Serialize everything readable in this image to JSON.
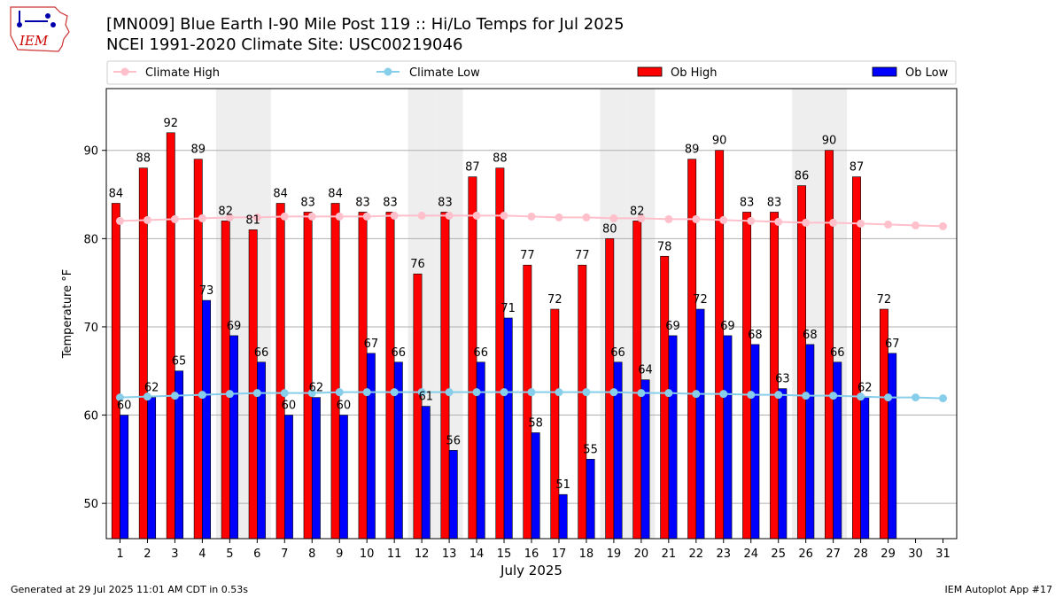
{
  "logo_text": "IEM",
  "title": "[MN009] Blue Earth I-90 Mile Post 119 :: Hi/Lo Temps for Jul 2025",
  "subtitle": "NCEI 1991-2020 Climate Site: USC00219046",
  "footer_left": "Generated at 29 Jul 2025 11:01 AM CDT in 0.53s",
  "footer_right": "IEM Autoplot App #17",
  "colors": {
    "climate_high": "#ffc0cb",
    "climate_low": "#87ceeb",
    "ob_high": "#ff0000",
    "ob_low": "#0000ff",
    "weekend_shade": "#eeeeee",
    "grid": "#b0b0b0"
  },
  "chart_data": {
    "type": "bar",
    "xlabel": "July 2025",
    "ylabel": "Temperature °F",
    "ylim": [
      46,
      97
    ],
    "yticks": [
      50,
      60,
      70,
      80,
      90
    ],
    "grid": "horizontal",
    "legend_position": "top",
    "categories": [
      "1",
      "2",
      "3",
      "4",
      "5",
      "6",
      "7",
      "8",
      "9",
      "10",
      "11",
      "12",
      "13",
      "14",
      "15",
      "16",
      "17",
      "18",
      "19",
      "20",
      "21",
      "22",
      "23",
      "24",
      "25",
      "26",
      "27",
      "28",
      "29",
      "30",
      "31"
    ],
    "weekend_days": [
      5,
      6,
      12,
      13,
      19,
      20,
      26,
      27
    ],
    "series": [
      {
        "name": "Climate High",
        "kind": "line",
        "values": [
          82.0,
          82.1,
          82.2,
          82.3,
          82.4,
          82.4,
          82.5,
          82.5,
          82.5,
          82.5,
          82.6,
          82.6,
          82.6,
          82.6,
          82.6,
          82.5,
          82.4,
          82.4,
          82.3,
          82.3,
          82.2,
          82.2,
          82.1,
          82.0,
          81.9,
          81.8,
          81.8,
          81.7,
          81.6,
          81.5,
          81.4
        ]
      },
      {
        "name": "Climate Low",
        "kind": "line",
        "values": [
          62.0,
          62.1,
          62.2,
          62.3,
          62.4,
          62.5,
          62.5,
          62.5,
          62.6,
          62.6,
          62.6,
          62.6,
          62.6,
          62.6,
          62.6,
          62.6,
          62.6,
          62.6,
          62.6,
          62.5,
          62.5,
          62.4,
          62.4,
          62.3,
          62.3,
          62.2,
          62.2,
          62.1,
          62.0,
          62.0,
          61.9
        ]
      },
      {
        "name": "Ob High",
        "kind": "bar",
        "values": [
          84,
          88,
          92,
          89,
          82,
          81,
          84,
          83,
          84,
          83,
          83,
          76,
          83,
          87,
          88,
          77,
          72,
          77,
          80,
          82,
          78,
          89,
          90,
          83,
          83,
          86,
          90,
          87,
          72,
          null,
          null
        ]
      },
      {
        "name": "Ob Low",
        "kind": "bar",
        "values": [
          60,
          62,
          65,
          73,
          69,
          66,
          60,
          62,
          60,
          67,
          66,
          61,
          56,
          66,
          71,
          58,
          51,
          55,
          66,
          64,
          69,
          72,
          69,
          68,
          63,
          68,
          66,
          62,
          67,
          null,
          null
        ]
      }
    ]
  }
}
